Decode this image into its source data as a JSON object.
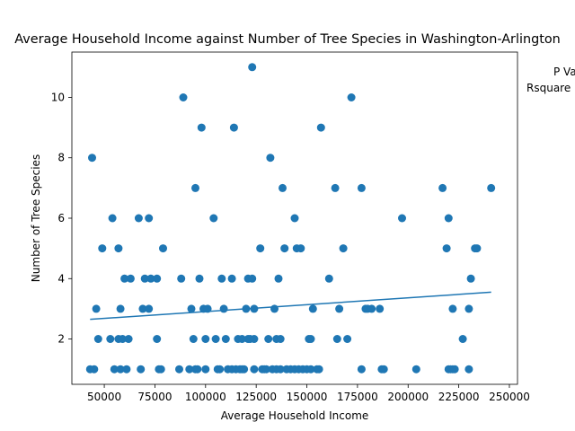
{
  "chart_data": {
    "type": "scatter",
    "title": "Average Household Income against Number of Tree Species in Washington-Arlington",
    "xlabel": "Average Household Income",
    "ylabel": "Number of Tree Species",
    "xlim": [
      34000,
      254000
    ],
    "ylim": [
      0.5,
      11.5
    ],
    "xticks": [
      50000,
      75000,
      100000,
      125000,
      150000,
      175000,
      200000,
      225000,
      250000
    ],
    "yticks": [
      2,
      4,
      6,
      8,
      10
    ],
    "grid": false,
    "annotations": [
      "P Va",
      "Rsquare"
    ],
    "marker_color": "#1f77b4",
    "trendline": {
      "x": [
        43000,
        241000
      ],
      "y": [
        2.65,
        3.55
      ],
      "color": "#1f77b4"
    },
    "points": [
      [
        43000,
        1
      ],
      [
        44000,
        8
      ],
      [
        45000,
        1
      ],
      [
        46000,
        3
      ],
      [
        47000,
        2
      ],
      [
        49000,
        5
      ],
      [
        53000,
        2
      ],
      [
        54000,
        6
      ],
      [
        55000,
        1
      ],
      [
        57000,
        2
      ],
      [
        57000,
        5
      ],
      [
        58000,
        3
      ],
      [
        58000,
        1
      ],
      [
        59000,
        2
      ],
      [
        60000,
        4
      ],
      [
        61000,
        1
      ],
      [
        62000,
        2
      ],
      [
        63000,
        4
      ],
      [
        67000,
        6
      ],
      [
        68000,
        1
      ],
      [
        69000,
        3
      ],
      [
        70000,
        4
      ],
      [
        72000,
        3
      ],
      [
        72000,
        6
      ],
      [
        73000,
        4
      ],
      [
        76000,
        4
      ],
      [
        76000,
        2
      ],
      [
        77000,
        1
      ],
      [
        78000,
        1
      ],
      [
        79000,
        5
      ],
      [
        87000,
        1
      ],
      [
        88000,
        4
      ],
      [
        89000,
        10
      ],
      [
        92000,
        1
      ],
      [
        93000,
        3
      ],
      [
        94000,
        2
      ],
      [
        95000,
        7
      ],
      [
        95000,
        1
      ],
      [
        96000,
        1
      ],
      [
        97000,
        4
      ],
      [
        98000,
        9
      ],
      [
        99000,
        3
      ],
      [
        100000,
        1
      ],
      [
        100000,
        2
      ],
      [
        101000,
        3
      ],
      [
        104000,
        6
      ],
      [
        105000,
        2
      ],
      [
        106000,
        1
      ],
      [
        107000,
        1
      ],
      [
        108000,
        4
      ],
      [
        109000,
        3
      ],
      [
        110000,
        2
      ],
      [
        111000,
        1
      ],
      [
        113000,
        1
      ],
      [
        113000,
        4
      ],
      [
        114000,
        9
      ],
      [
        115000,
        1
      ],
      [
        116000,
        2
      ],
      [
        117000,
        1
      ],
      [
        118000,
        2
      ],
      [
        118000,
        1
      ],
      [
        119000,
        1
      ],
      [
        120000,
        3
      ],
      [
        121000,
        4
      ],
      [
        121000,
        2
      ],
      [
        122000,
        2
      ],
      [
        123000,
        11
      ],
      [
        123000,
        4
      ],
      [
        124000,
        1
      ],
      [
        124000,
        2
      ],
      [
        124000,
        3
      ],
      [
        127000,
        5
      ],
      [
        128000,
        1
      ],
      [
        129000,
        1
      ],
      [
        130000,
        1
      ],
      [
        131000,
        2
      ],
      [
        132000,
        8
      ],
      [
        133000,
        1
      ],
      [
        134000,
        3
      ],
      [
        135000,
        2
      ],
      [
        135000,
        1
      ],
      [
        136000,
        4
      ],
      [
        137000,
        2
      ],
      [
        137000,
        1
      ],
      [
        138000,
        7
      ],
      [
        139000,
        5
      ],
      [
        140000,
        1
      ],
      [
        142000,
        1
      ],
      [
        144000,
        6
      ],
      [
        144000,
        1
      ],
      [
        145000,
        5
      ],
      [
        146000,
        1
      ],
      [
        147000,
        5
      ],
      [
        148000,
        1
      ],
      [
        150000,
        1
      ],
      [
        151000,
        2
      ],
      [
        152000,
        2
      ],
      [
        152000,
        1
      ],
      [
        153000,
        3
      ],
      [
        155000,
        1
      ],
      [
        156000,
        1
      ],
      [
        157000,
        9
      ],
      [
        161000,
        4
      ],
      [
        164000,
        7
      ],
      [
        165000,
        2
      ],
      [
        166000,
        3
      ],
      [
        168000,
        5
      ],
      [
        170000,
        2
      ],
      [
        172000,
        10
      ],
      [
        177000,
        7
      ],
      [
        177000,
        1
      ],
      [
        179000,
        3
      ],
      [
        180000,
        3
      ],
      [
        182000,
        3
      ],
      [
        186000,
        3
      ],
      [
        187000,
        1
      ],
      [
        188000,
        1
      ],
      [
        197000,
        6
      ],
      [
        204000,
        1
      ],
      [
        217000,
        7
      ],
      [
        219000,
        5
      ],
      [
        220000,
        6
      ],
      [
        220000,
        1
      ],
      [
        221000,
        1
      ],
      [
        222000,
        1
      ],
      [
        222000,
        3
      ],
      [
        223000,
        1
      ],
      [
        227000,
        2
      ],
      [
        230000,
        1
      ],
      [
        230000,
        3
      ],
      [
        231000,
        4
      ],
      [
        233000,
        5
      ],
      [
        234000,
        5
      ],
      [
        241000,
        7
      ]
    ]
  }
}
